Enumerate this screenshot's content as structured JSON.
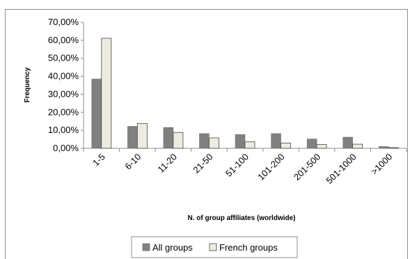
{
  "chart_data": {
    "type": "bar",
    "title": "",
    "xlabel": "N. of group affiliates (worldwide)",
    "ylabel": "Frequency",
    "ylim": [
      0,
      70
    ],
    "y_ticks": [
      "0,00%",
      "10,00%",
      "20,00%",
      "30,00%",
      "40,00%",
      "50,00%",
      "60,00%",
      "70,00%"
    ],
    "categories": [
      "1-5",
      "6-10",
      "11-20",
      "21-50",
      "51-100",
      "101-200",
      "201-500",
      "501-1000",
      ">1000"
    ],
    "series": [
      {
        "name": "All groups",
        "color": "#808080",
        "values": [
          38.5,
          12.2,
          11.6,
          8.2,
          7.7,
          8.2,
          5.2,
          6.2,
          1.0
        ]
      },
      {
        "name": "French groups",
        "color": "#eeece1",
        "values": [
          61.1,
          13.8,
          8.8,
          5.8,
          3.6,
          2.9,
          2.1,
          2.3,
          0.4
        ]
      }
    ],
    "legend_position": "bottom",
    "grid": false
  }
}
